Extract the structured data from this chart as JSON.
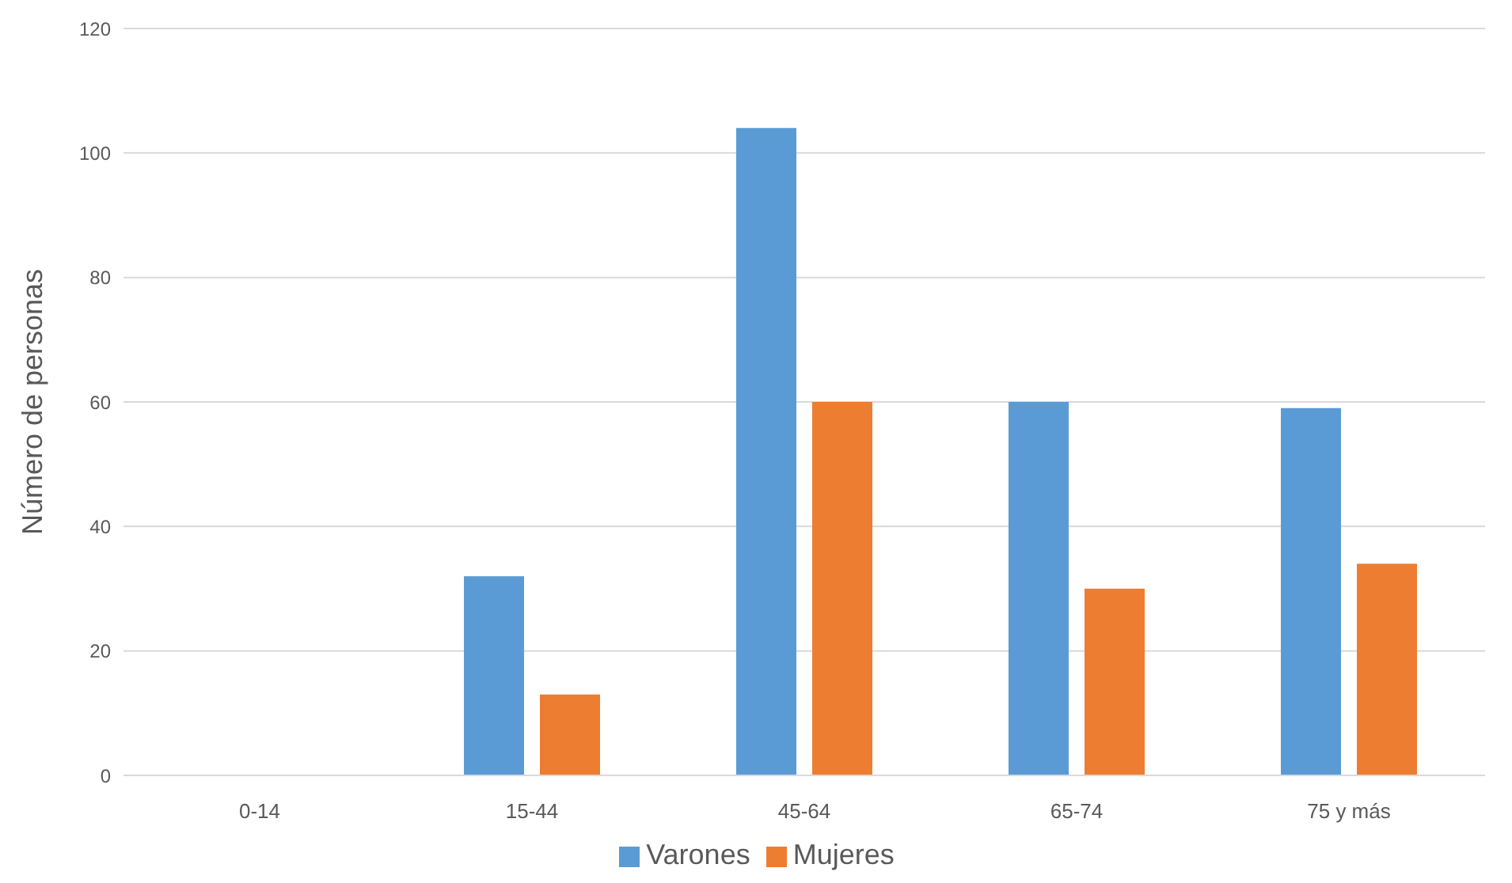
{
  "chart_data": {
    "type": "bar",
    "ylabel": "Número de personas",
    "categories": [
      "0-14",
      "15-44",
      "45-64",
      "65-74",
      "75 y más"
    ],
    "series": [
      {
        "name": "Varones",
        "color": "#5b9bd5",
        "values": [
          0,
          32,
          104,
          60,
          59
        ]
      },
      {
        "name": "Mujeres",
        "color": "#ed7d31",
        "values": [
          0,
          13,
          60,
          30,
          34
        ]
      }
    ],
    "ylim": [
      0,
      120
    ],
    "yticks": [
      0,
      20,
      40,
      60,
      80,
      100,
      120
    ],
    "grid": "y",
    "legend": "bottom"
  }
}
